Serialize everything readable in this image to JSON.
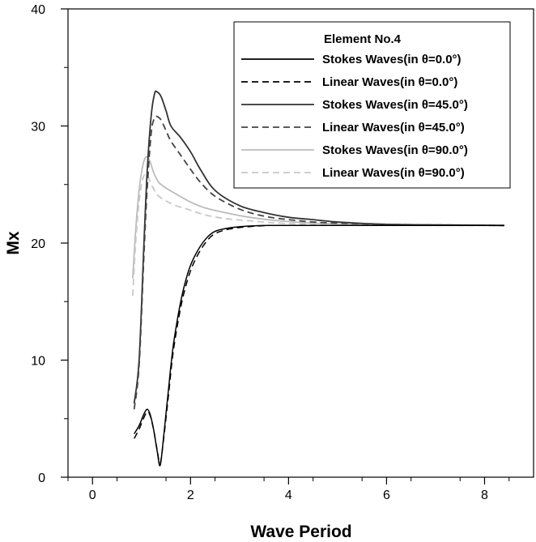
{
  "chart_data": {
    "type": "line",
    "title": "",
    "xlabel": "Wave Period",
    "ylabel": "Mx",
    "xlim": [
      -0.5,
      9
    ],
    "ylim": [
      0,
      40
    ],
    "xticks": [
      0,
      2,
      4,
      6,
      8
    ],
    "yticks": [
      0,
      10,
      20,
      30,
      40
    ],
    "xtick_labels": [
      "0",
      "2",
      "4",
      "6",
      "8"
    ],
    "ytick_labels": [
      "0",
      "10",
      "20",
      "30",
      "40"
    ],
    "grid": false,
    "legend_position": "top-right",
    "legend_title": "Element No.4",
    "series": [
      {
        "name": "Stokes Waves(in θ=0.0°)",
        "color": "#000000",
        "dash": "solid",
        "x": [
          0.85,
          0.95,
          1.05,
          1.12,
          1.18,
          1.25,
          1.32,
          1.38,
          1.45,
          1.55,
          1.65,
          1.8,
          1.95,
          2.1,
          2.3,
          2.5,
          2.8,
          3.2,
          3.6,
          4.0,
          5.0,
          6.0,
          7.0,
          8.4
        ],
        "y": [
          3.7,
          4.4,
          5.4,
          5.8,
          5.3,
          4.0,
          2.2,
          1.0,
          3.4,
          7.5,
          11.3,
          15.0,
          17.5,
          19.0,
          20.3,
          21.0,
          21.3,
          21.45,
          21.5,
          21.5,
          21.5,
          21.5,
          21.5,
          21.5
        ]
      },
      {
        "name": "Linear Waves(in θ=0.0°)",
        "color": "#000000",
        "dash": "dashed",
        "x": [
          0.85,
          0.95,
          1.05,
          1.12,
          1.18,
          1.25,
          1.32,
          1.38,
          1.45,
          1.55,
          1.65,
          1.8,
          1.95,
          2.1,
          2.3,
          2.5,
          2.8,
          3.2,
          3.6,
          4.0,
          5.0,
          6.0,
          7.0,
          8.4
        ],
        "y": [
          3.3,
          4.1,
          5.1,
          5.6,
          5.2,
          4.0,
          2.3,
          1.2,
          3.2,
          7.0,
          10.8,
          14.5,
          17.0,
          18.6,
          20.0,
          20.8,
          21.2,
          21.4,
          21.5,
          21.5,
          21.5,
          21.5,
          21.5,
          21.5
        ]
      },
      {
        "name": "Stokes Waves(in θ=45.0°)",
        "color": "#333333",
        "dash": "solid",
        "x": [
          0.85,
          0.95,
          1.05,
          1.12,
          1.2,
          1.27,
          1.32,
          1.4,
          1.5,
          1.6,
          1.8,
          2.0,
          2.2,
          2.5,
          3.0,
          3.5,
          4.0,
          4.5,
          5.0,
          6.0,
          7.0,
          8.4
        ],
        "y": [
          6.3,
          10.0,
          20.0,
          26.5,
          31.0,
          32.8,
          32.9,
          32.5,
          31.3,
          30.0,
          29.0,
          27.8,
          26.3,
          24.5,
          23.2,
          22.6,
          22.2,
          22.0,
          21.8,
          21.6,
          21.55,
          21.5
        ]
      },
      {
        "name": "Linear Waves(in θ=45.0°)",
        "color": "#444444",
        "dash": "dashed",
        "x": [
          0.85,
          0.95,
          1.05,
          1.12,
          1.2,
          1.27,
          1.32,
          1.4,
          1.5,
          1.6,
          1.8,
          2.0,
          2.2,
          2.5,
          3.0,
          3.5,
          4.0,
          4.5,
          5.0,
          6.0,
          7.0,
          8.4
        ],
        "y": [
          5.8,
          9.5,
          19.0,
          25.0,
          29.5,
          30.7,
          30.8,
          30.5,
          29.6,
          28.7,
          27.5,
          26.3,
          25.2,
          24.0,
          22.9,
          22.3,
          22.0,
          21.8,
          21.7,
          21.6,
          21.55,
          21.5
        ]
      },
      {
        "name": "Stokes Waves(in θ=90.0°)",
        "color": "#bbbbbb",
        "dash": "solid",
        "x": [
          0.82,
          0.88,
          0.95,
          1.02,
          1.08,
          1.13,
          1.18,
          1.25,
          1.35,
          1.5,
          1.7,
          2.0,
          2.3,
          2.7,
          3.2,
          3.8,
          4.5,
          5.5,
          7.0,
          8.4
        ],
        "y": [
          17.0,
          21.0,
          24.5,
          26.5,
          27.3,
          27.3,
          26.9,
          26.0,
          25.2,
          24.7,
          24.2,
          23.5,
          23.0,
          22.6,
          22.2,
          21.9,
          21.7,
          21.6,
          21.55,
          21.5
        ]
      },
      {
        "name": "Linear Waves(in θ=90.0°)",
        "color": "#c8c8c8",
        "dash": "dashed",
        "x": [
          0.82,
          0.88,
          0.95,
          1.02,
          1.08,
          1.13,
          1.18,
          1.25,
          1.35,
          1.5,
          1.7,
          2.0,
          2.3,
          2.7,
          3.2,
          3.8,
          4.5,
          5.5,
          7.0,
          8.4
        ],
        "y": [
          15.5,
          20.0,
          23.5,
          25.4,
          25.9,
          25.7,
          25.2,
          24.6,
          24.0,
          23.6,
          23.2,
          22.8,
          22.4,
          22.1,
          21.9,
          21.7,
          21.6,
          21.55,
          21.5,
          21.5
        ]
      }
    ]
  }
}
